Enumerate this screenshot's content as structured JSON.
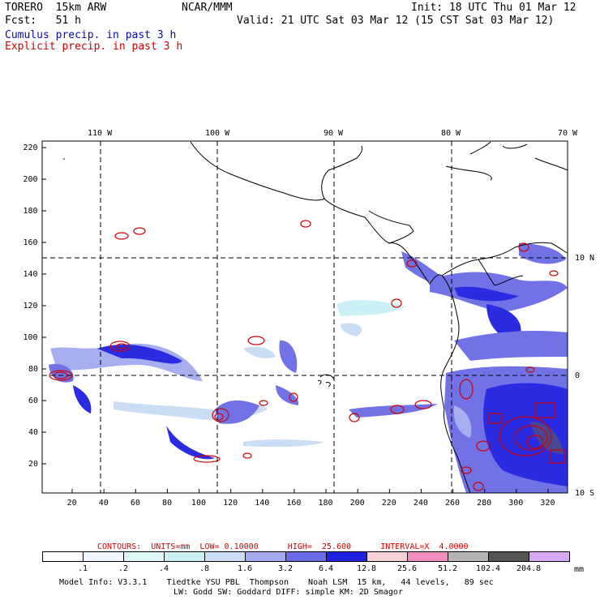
{
  "header": {
    "model_label": "TORERO  15km ARW",
    "org": "NCAR/MMM",
    "init": "Init: 18 UTC Thu 01 Mar 12",
    "fcst": "Fcst:   51 h",
    "valid": "Valid: 21 UTC Sat 03 Mar 12 (15 CST Sat 03 Mar 12)",
    "legend_cumulus": "Cumulus precip. in past 3 h",
    "legend_explicit": "Explicit precip. in past 3 h"
  },
  "colors": {
    "cumulus_text": "#0a0aa8",
    "explicit_text": "#d10000",
    "contour": "#d10000"
  },
  "axes": {
    "top_lon_labels": [
      "110 W",
      "100 W",
      "90 W",
      "80 W",
      "70 W"
    ],
    "right_lat_labels": [
      "10 N",
      "0",
      "10 S"
    ],
    "y_ticks": [
      "220",
      "200",
      "180",
      "160",
      "140",
      "120",
      "100",
      "80",
      "60",
      "40",
      "20"
    ],
    "x_ticks": [
      "20",
      "40",
      "60",
      "80",
      "100",
      "120",
      "140",
      "160",
      "180",
      "200",
      "220",
      "240",
      "260",
      "280",
      "300",
      "320"
    ]
  },
  "contour_info": {
    "text": "CONTOURS:  UNITS=mm  LOW= 0.10000      HIGH=  25.600      INTERVAL=X  4.0000"
  },
  "colorbar": {
    "unit": "mm",
    "labels": [
      ".1",
      ".2",
      ".4",
      ".8",
      "1.6",
      "3.2",
      "6.4",
      "12.8",
      "25.6",
      "51.2",
      "102.4",
      "204.8"
    ],
    "colors": [
      "#ffffff",
      "#eef5ff",
      "#ddf7f7",
      "#c9f0f5",
      "#c9dcf4",
      "#a3aaf0",
      "#6b6be6",
      "#2020e0",
      "#f6d2d6",
      "#f08cbe",
      "#b4b4b4",
      "#555555",
      "#d8a8f4"
    ]
  },
  "footer": {
    "line1": "Model Info: V3.3.1    Tiedtke YSU PBL  Thompson    Noah LSM  15 km,   44 levels,   89 sec",
    "line2": "LW: Godd SW: Goddard DIFF: simple KM: 2D Smagor"
  }
}
